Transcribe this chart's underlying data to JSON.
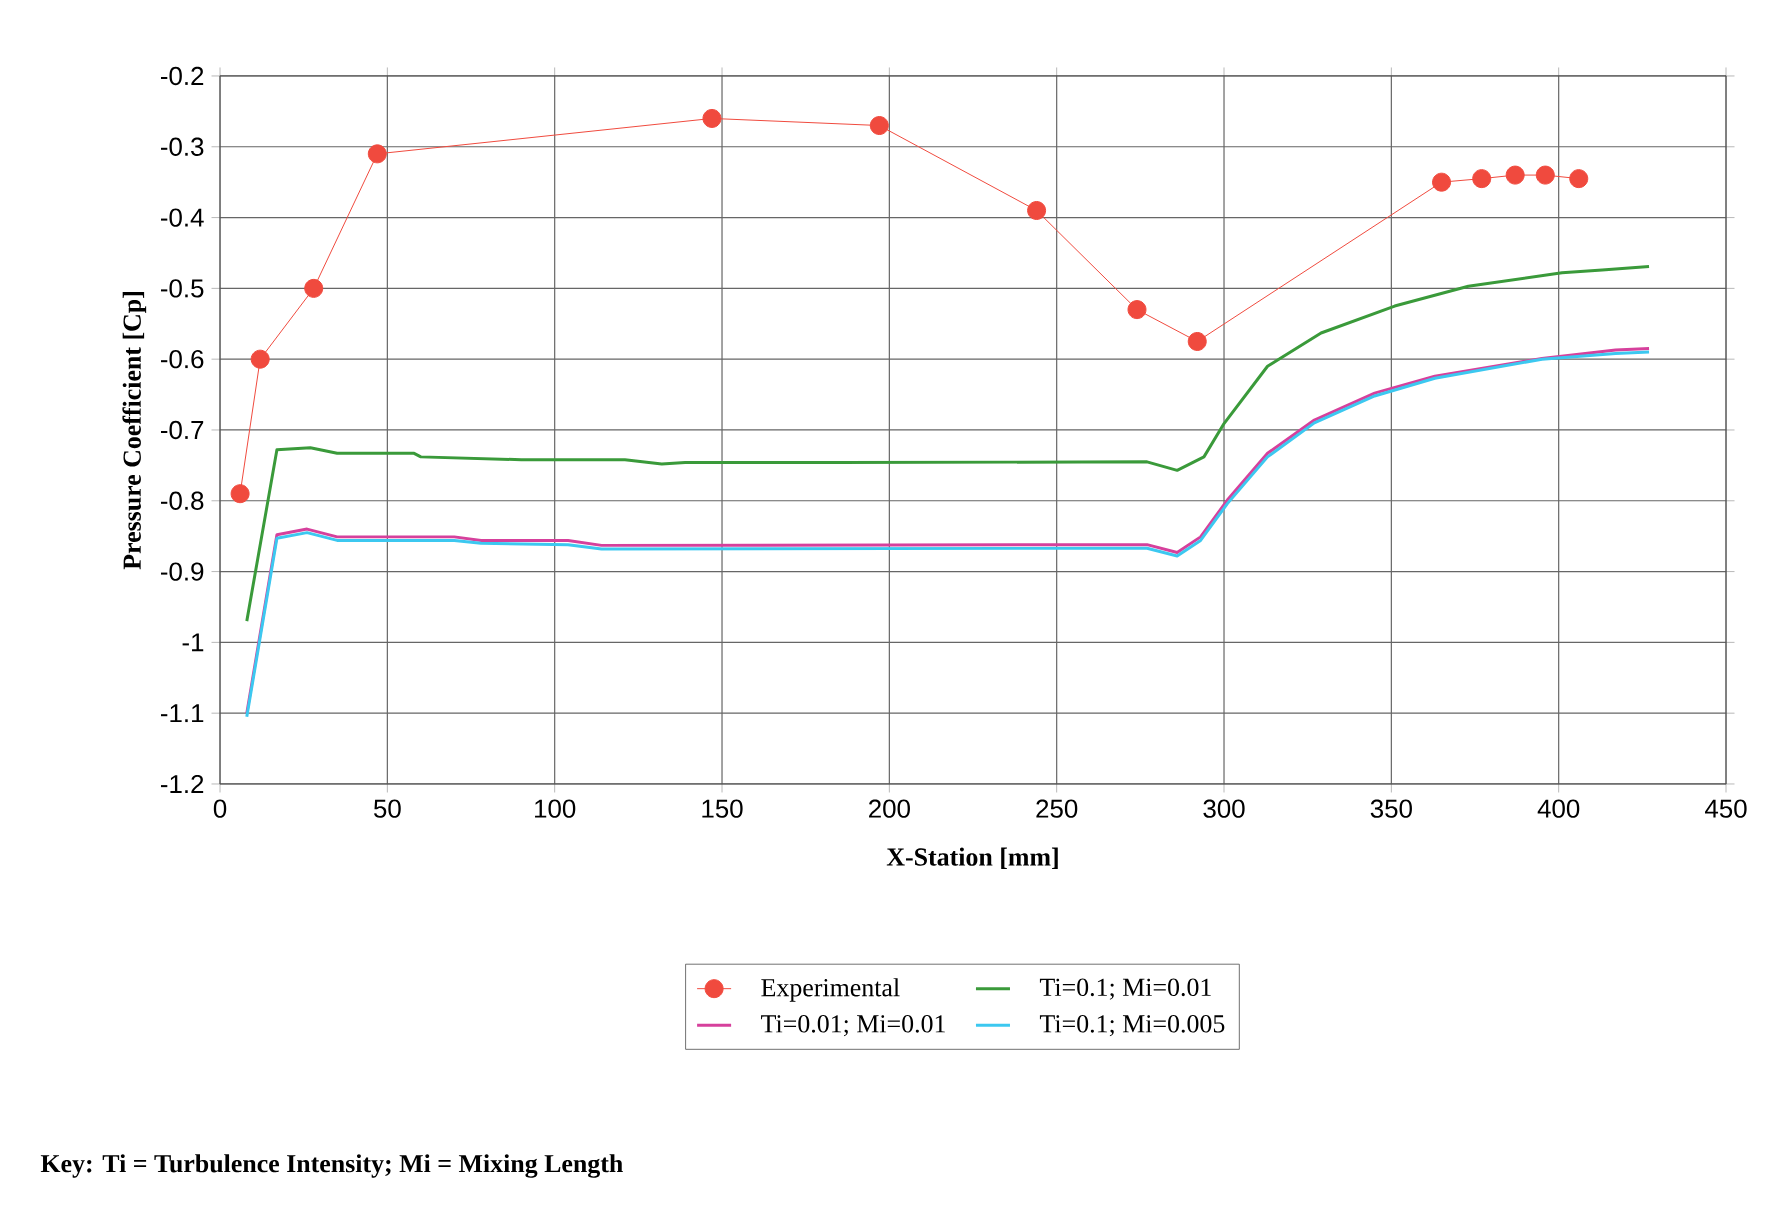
{
  "chart_data": {
    "type": "line",
    "xlabel": "X-Station [mm]",
    "ylabel": "Pressure Coefficient [Cp]",
    "annotations": [
      "Key: Ti = Turbulence Intensity; Mi = Mixing Length"
    ],
    "xlim": [
      0,
      450
    ],
    "ylim": [
      -1.2,
      -0.2
    ],
    "xticks": [
      0,
      50,
      100,
      150,
      200,
      250,
      300,
      350,
      400,
      450
    ],
    "yticks": [
      -1.2,
      -1.1,
      -1,
      -0.9,
      -0.8,
      -0.7,
      -0.6,
      -0.5,
      -0.4,
      -0.3,
      -0.2
    ],
    "grid": true,
    "legend": "bottom",
    "series": [
      {
        "name": "Experimental",
        "color": "#f04a3e",
        "marker": "circle",
        "x": [
          6,
          12,
          28,
          47,
          147,
          197,
          244,
          274,
          292,
          365,
          377,
          387,
          396,
          406
        ],
        "values": [
          -0.79,
          -0.6,
          -0.5,
          -0.31,
          -0.26,
          -0.27,
          -0.39,
          -0.53,
          -0.575,
          -0.35,
          -0.345,
          -0.34,
          -0.34,
          -0.345
        ]
      },
      {
        "name": "Ti=0.1; Mi=0.01",
        "color": "#3a9a3a",
        "x": [
          8,
          17,
          27,
          35,
          58,
          60,
          90,
          121,
          132,
          139,
          185,
          277,
          286,
          294,
          300,
          313,
          329,
          351,
          373,
          401,
          413,
          427
        ],
        "values": [
          -0.97,
          -0.728,
          -0.725,
          -0.733,
          -0.733,
          -0.738,
          -0.742,
          -0.742,
          -0.748,
          -0.746,
          -0.746,
          -0.745,
          -0.757,
          -0.738,
          -0.691,
          -0.61,
          -0.563,
          -0.525,
          -0.497,
          -0.478,
          -0.474,
          -0.469
        ]
      },
      {
        "name": "Ti=0.01; Mi=0.01",
        "color": "#d6409c",
        "x": [
          8,
          17,
          26,
          35,
          70,
          78,
          104,
          114,
          277,
          286,
          293,
          301,
          313,
          327,
          345,
          363,
          395,
          417,
          427
        ],
        "values": [
          -1.1,
          -0.848,
          -0.84,
          -0.851,
          -0.851,
          -0.856,
          -0.856,
          -0.863,
          -0.862,
          -0.873,
          -0.851,
          -0.799,
          -0.733,
          -0.686,
          -0.648,
          -0.624,
          -0.599,
          -0.587,
          -0.585
        ]
      },
      {
        "name": "Ti=0.1; Mi=0.005",
        "color": "#3cc8f0",
        "x": [
          8,
          17,
          26,
          35,
          70,
          78,
          104,
          114,
          277,
          286,
          293,
          301,
          313,
          327,
          345,
          363,
          395,
          417,
          427
        ],
        "values": [
          -1.105,
          -0.853,
          -0.845,
          -0.856,
          -0.856,
          -0.86,
          -0.862,
          -0.868,
          -0.867,
          -0.878,
          -0.856,
          -0.804,
          -0.738,
          -0.69,
          -0.652,
          -0.627,
          -0.6,
          -0.592,
          -0.59
        ]
      }
    ]
  }
}
